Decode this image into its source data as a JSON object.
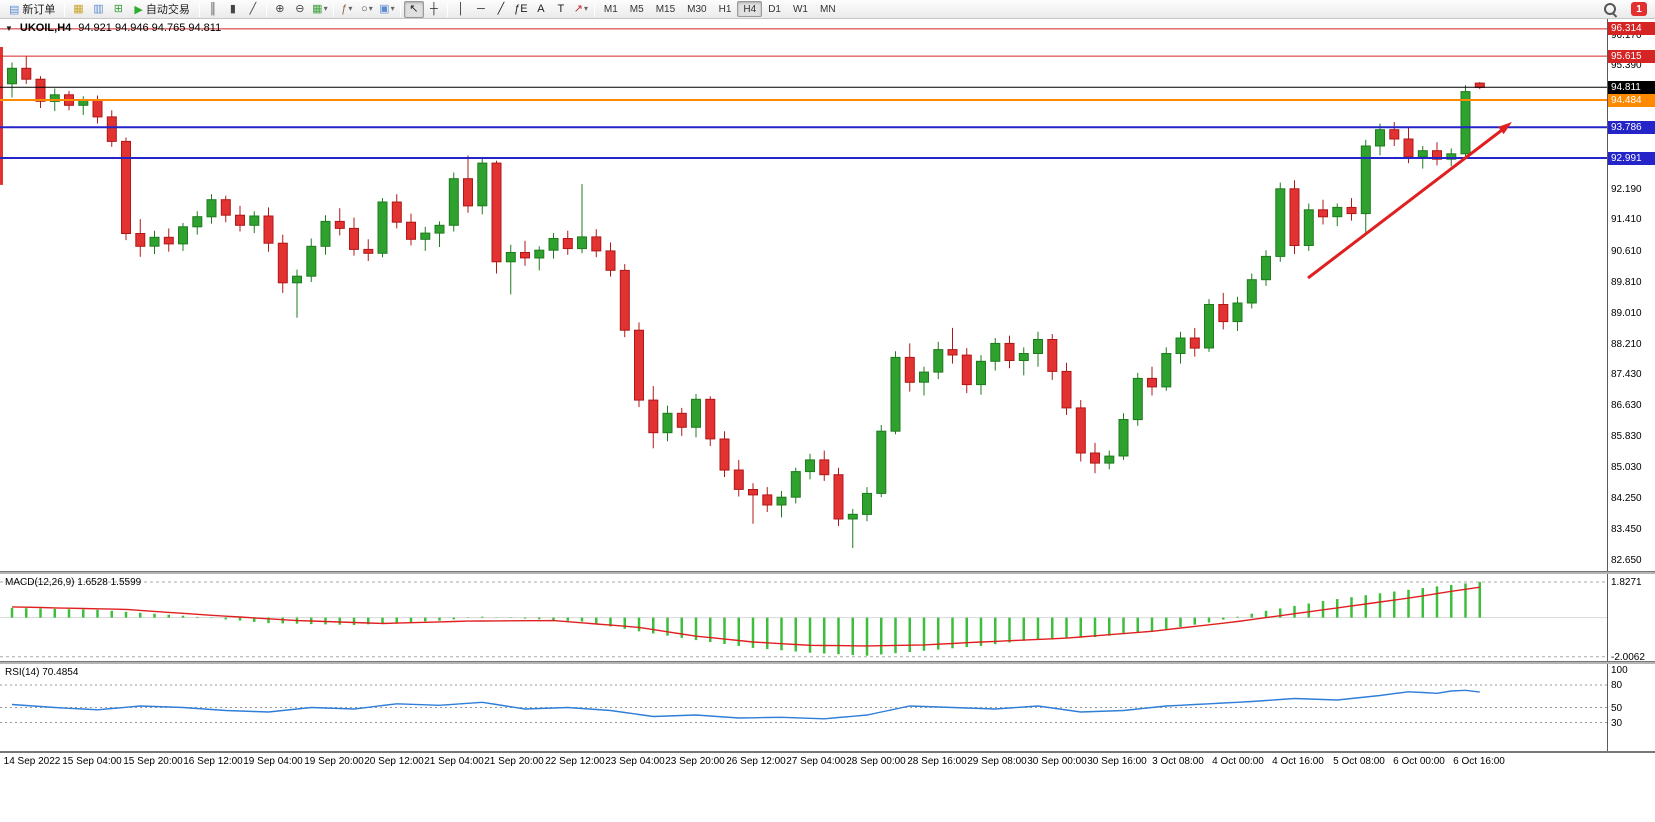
{
  "window": {
    "notification_count": "1"
  },
  "toolbar": {
    "new_order_label": "新订单",
    "auto_trading_label": "自动交易",
    "timeframes": [
      "M1",
      "M5",
      "M15",
      "M30",
      "H1",
      "H4",
      "D1",
      "W1",
      "MN"
    ],
    "active_timeframe": "H4",
    "icons": [
      {
        "t": "btn",
        "name": "new-order-button",
        "glyph": "▤",
        "gc": "#5b8bd0",
        "label_key": "new_order_label"
      },
      {
        "t": "sep"
      },
      {
        "t": "ico",
        "name": "market-watch-icon",
        "glyph": "▦",
        "gc": "#c9a227"
      },
      {
        "t": "ico",
        "name": "data-window-icon",
        "glyph": "▥",
        "gc": "#5b8bd0"
      },
      {
        "t": "ico",
        "name": "navigator-icon",
        "glyph": "⊞",
        "gc": "#3a9e3a"
      },
      {
        "t": "btn",
        "name": "auto-trading-button",
        "glyph": "▶",
        "gc": "#2eae2e",
        "label_key": "auto_trading_label"
      },
      {
        "t": "sep"
      },
      {
        "t": "ico",
        "name": "ohlc-bars-icon",
        "glyph": "║",
        "gc": "#444444"
      },
      {
        "t": "ico",
        "name": "candlestick-chart-icon",
        "glyph": "▮",
        "gc": "#444444"
      },
      {
        "t": "ico",
        "name": "line-chart-icon",
        "glyph": "╱",
        "gc": "#444444"
      },
      {
        "t": "sep"
      },
      {
        "t": "ico",
        "name": "zoom-in-icon",
        "glyph": "⊕",
        "gc": "#444444"
      },
      {
        "t": "ico",
        "name": "zoom-out-icon",
        "glyph": "⊖",
        "gc": "#444444"
      },
      {
        "t": "icodd",
        "name": "tile-windows-icon",
        "glyph": "▦",
        "gc": "#3a9e3a"
      },
      {
        "t": "sep"
      },
      {
        "t": "icodd",
        "name": "indicators-icon",
        "glyph": "ƒ",
        "gc": "#8a6d3b"
      },
      {
        "t": "icodd",
        "name": "periods-icon",
        "glyph": "○",
        "gc": "#444444"
      },
      {
        "t": "icodd",
        "name": "templates-icon",
        "glyph": "▣",
        "gc": "#5b8bd0"
      },
      {
        "t": "sep"
      },
      {
        "t": "ico",
        "name": "cursor-icon",
        "glyph": "↖",
        "gc": "#222222",
        "active": true
      },
      {
        "t": "ico",
        "name": "crosshair-icon",
        "glyph": "┼",
        "gc": "#222222"
      },
      {
        "t": "sep"
      },
      {
        "t": "ico",
        "name": "vertical-line-icon",
        "glyph": "│",
        "gc": "#222222"
      },
      {
        "t": "ico",
        "name": "horizontal-line-icon",
        "glyph": "─",
        "gc": "#222222"
      },
      {
        "t": "ico",
        "name": "trendline-icon",
        "glyph": "╱",
        "gc": "#222222"
      },
      {
        "t": "ico",
        "name": "fibonacci-icon",
        "glyph": "ƒE",
        "gc": "#222222"
      },
      {
        "t": "ico",
        "name": "text-icon",
        "glyph": "A",
        "gc": "#222222"
      },
      {
        "t": "ico",
        "name": "text-label-icon",
        "glyph": "T",
        "gc": "#222222"
      },
      {
        "t": "icodd",
        "name": "arrows-icon",
        "glyph": "↗",
        "gc": "#c03030"
      },
      {
        "t": "sep"
      },
      {
        "t": "tf"
      },
      {
        "t": "spacer"
      },
      {
        "t": "mag",
        "name": "search-icon"
      },
      {
        "t": "badge",
        "name": "notification-badge"
      }
    ]
  },
  "chart": {
    "title": "UKOIL,H4",
    "quote": "94.921 94.946 94.765 94.811",
    "y_ticks": [
      "96.170",
      "95.390",
      "94.590",
      "93.790",
      "92.990",
      "92.190",
      "91.410",
      "90.610",
      "89.810",
      "89.010",
      "88.210",
      "87.430",
      "86.630",
      "85.830",
      "85.030",
      "84.250",
      "83.450",
      "82.650"
    ],
    "hlines": [
      {
        "price": 96.314,
        "label": "96.314",
        "color": "#d42424",
        "width": 1
      },
      {
        "price": 95.615,
        "label": "95.615",
        "color": "#d42424",
        "width": 1
      },
      {
        "price": 94.811,
        "label": "94.811",
        "color": "#000000",
        "width": 1
      },
      {
        "price": 94.484,
        "label": "94.484",
        "color": "#ff8a00",
        "width": 2
      },
      {
        "price": 93.786,
        "label": "93.786",
        "color": "#2424c8",
        "width": 2
      },
      {
        "price": 92.991,
        "label": "92.991",
        "color": "#2424c8",
        "width": 2
      }
    ],
    "time_labels": [
      "14 Sep 2022",
      "15 Sep 04:00",
      "15 Sep 20:00",
      "16 Sep 12:00",
      "19 Sep 04:00",
      "19 Sep 20:00",
      "20 Sep 12:00",
      "21 Sep 04:00",
      "21 Sep 20:00",
      "22 Sep 12:00",
      "23 Sep 04:00",
      "23 Sep 20:00",
      "26 Sep 12:00",
      "27 Sep 04:00",
      "28 Sep 00:00",
      "28 Sep 16:00",
      "29 Sep 08:00",
      "30 Sep 00:00",
      "30 Sep 16:00",
      "3 Oct 08:00",
      "4 Oct 00:00",
      "4 Oct 16:00",
      "5 Oct 08:00",
      "6 Oct 00:00",
      "6 Oct 16:00"
    ],
    "candles": [
      [
        94.9,
        95.45,
        94.55,
        95.3
      ],
      [
        95.3,
        95.62,
        94.9,
        95.02
      ],
      [
        95.02,
        95.1,
        94.28,
        94.45
      ],
      [
        94.45,
        94.78,
        94.2,
        94.62
      ],
      [
        94.62,
        94.72,
        94.22,
        94.35
      ],
      [
        94.35,
        94.58,
        94.1,
        94.48
      ],
      [
        94.48,
        94.6,
        93.88,
        94.05
      ],
      [
        94.05,
        94.22,
        93.28,
        93.42
      ],
      [
        93.42,
        93.52,
        90.88,
        91.05
      ],
      [
        91.05,
        91.42,
        90.45,
        90.72
      ],
      [
        90.72,
        91.12,
        90.52,
        90.95
      ],
      [
        90.95,
        91.18,
        90.58,
        90.78
      ],
      [
        90.78,
        91.32,
        90.6,
        91.22
      ],
      [
        91.22,
        91.62,
        91.02,
        91.48
      ],
      [
        91.48,
        92.06,
        91.3,
        91.92
      ],
      [
        91.92,
        92.02,
        91.34,
        91.52
      ],
      [
        91.52,
        91.76,
        91.1,
        91.26
      ],
      [
        91.26,
        91.62,
        91.06,
        91.5
      ],
      [
        91.5,
        91.72,
        90.58,
        90.8
      ],
      [
        90.8,
        91.02,
        89.52,
        89.78
      ],
      [
        89.78,
        90.12,
        88.88,
        89.95
      ],
      [
        89.95,
        90.92,
        89.8,
        90.72
      ],
      [
        90.72,
        91.52,
        90.5,
        91.36
      ],
      [
        91.36,
        91.7,
        91.0,
        91.18
      ],
      [
        91.18,
        91.46,
        90.48,
        90.64
      ],
      [
        90.64,
        90.9,
        90.34,
        90.54
      ],
      [
        90.54,
        91.96,
        90.44,
        91.86
      ],
      [
        91.86,
        92.06,
        91.18,
        91.34
      ],
      [
        91.34,
        91.56,
        90.74,
        90.9
      ],
      [
        90.9,
        91.22,
        90.6,
        91.06
      ],
      [
        91.06,
        91.36,
        90.7,
        91.26
      ],
      [
        91.26,
        92.62,
        91.1,
        92.46
      ],
      [
        92.46,
        93.06,
        91.58,
        91.76
      ],
      [
        91.76,
        93.02,
        91.54,
        92.86
      ],
      [
        92.86,
        92.92,
        90.02,
        90.32
      ],
      [
        90.32,
        90.76,
        89.48,
        90.56
      ],
      [
        90.56,
        90.86,
        90.22,
        90.42
      ],
      [
        90.42,
        90.72,
        90.1,
        90.62
      ],
      [
        90.62,
        91.06,
        90.4,
        90.92
      ],
      [
        90.92,
        91.12,
        90.5,
        90.66
      ],
      [
        90.66,
        92.32,
        90.54,
        90.96
      ],
      [
        90.96,
        91.16,
        90.44,
        90.6
      ],
      [
        90.6,
        90.82,
        89.94,
        90.1
      ],
      [
        90.1,
        90.26,
        88.38,
        88.56
      ],
      [
        88.56,
        88.76,
        86.58,
        86.76
      ],
      [
        86.76,
        87.12,
        85.52,
        85.92
      ],
      [
        85.92,
        86.62,
        85.7,
        86.42
      ],
      [
        86.42,
        86.56,
        85.84,
        86.06
      ],
      [
        86.06,
        86.92,
        85.8,
        86.78
      ],
      [
        86.78,
        86.86,
        85.58,
        85.76
      ],
      [
        85.76,
        85.96,
        84.78,
        84.96
      ],
      [
        84.96,
        85.22,
        84.28,
        84.46
      ],
      [
        84.46,
        84.62,
        83.58,
        84.32
      ],
      [
        84.32,
        84.52,
        83.88,
        84.06
      ],
      [
        84.06,
        84.42,
        83.74,
        84.26
      ],
      [
        84.26,
        85.02,
        84.1,
        84.92
      ],
      [
        84.92,
        85.38,
        84.72,
        85.22
      ],
      [
        85.22,
        85.46,
        84.68,
        84.84
      ],
      [
        84.84,
        85.02,
        83.52,
        83.7
      ],
      [
        83.7,
        83.96,
        82.95,
        83.82
      ],
      [
        83.82,
        84.52,
        83.64,
        84.36
      ],
      [
        84.36,
        86.12,
        84.26,
        85.96
      ],
      [
        85.96,
        88.02,
        85.88,
        87.86
      ],
      [
        87.86,
        88.22,
        86.98,
        87.22
      ],
      [
        87.22,
        87.62,
        86.88,
        87.48
      ],
      [
        87.48,
        88.26,
        87.3,
        88.06
      ],
      [
        88.06,
        88.62,
        87.7,
        87.92
      ],
      [
        87.92,
        88.1,
        86.94,
        87.16
      ],
      [
        87.16,
        87.92,
        86.9,
        87.76
      ],
      [
        87.76,
        88.36,
        87.52,
        88.22
      ],
      [
        88.22,
        88.42,
        87.58,
        87.78
      ],
      [
        87.78,
        88.12,
        87.4,
        87.96
      ],
      [
        87.96,
        88.52,
        87.62,
        88.32
      ],
      [
        88.32,
        88.46,
        87.28,
        87.5
      ],
      [
        87.5,
        87.72,
        86.38,
        86.56
      ],
      [
        86.56,
        86.76,
        85.18,
        85.4
      ],
      [
        85.4,
        85.66,
        84.88,
        85.14
      ],
      [
        85.14,
        85.46,
        84.98,
        85.32
      ],
      [
        85.32,
        86.42,
        85.22,
        86.26
      ],
      [
        86.26,
        87.46,
        86.1,
        87.32
      ],
      [
        87.32,
        87.62,
        86.88,
        87.1
      ],
      [
        87.1,
        88.12,
        87.0,
        87.96
      ],
      [
        87.96,
        88.52,
        87.7,
        88.36
      ],
      [
        88.36,
        88.62,
        87.88,
        88.1
      ],
      [
        88.1,
        89.36,
        88.0,
        89.22
      ],
      [
        89.22,
        89.52,
        88.58,
        88.78
      ],
      [
        88.78,
        89.42,
        88.54,
        89.26
      ],
      [
        89.26,
        90.02,
        89.12,
        89.86
      ],
      [
        89.86,
        90.62,
        89.7,
        90.46
      ],
      [
        90.46,
        92.36,
        90.32,
        92.2
      ],
      [
        92.2,
        92.42,
        90.52,
        90.74
      ],
      [
        90.74,
        91.82,
        90.6,
        91.66
      ],
      [
        91.66,
        91.92,
        91.28,
        91.48
      ],
      [
        91.48,
        91.82,
        91.24,
        91.72
      ],
      [
        91.72,
        91.96,
        91.38,
        91.56
      ],
      [
        91.56,
        93.46,
        91.02,
        93.3
      ],
      [
        93.3,
        93.88,
        93.06,
        93.72
      ],
      [
        93.72,
        93.92,
        93.3,
        93.48
      ],
      [
        93.48,
        93.8,
        92.86,
        93.02
      ],
      [
        93.02,
        93.3,
        92.72,
        93.18
      ],
      [
        93.18,
        93.4,
        92.8,
        92.96
      ],
      [
        92.96,
        93.24,
        92.78,
        93.1
      ],
      [
        93.1,
        94.86,
        93.0,
        94.7
      ],
      [
        94.921,
        94.946,
        94.765,
        94.811
      ]
    ]
  },
  "macd": {
    "label": "MACD(12,26,9) 1.6528 1.5599",
    "axis_labels": [
      "1.8271",
      "-2.0062"
    ],
    "max": 1.8271,
    "min": -2.0062,
    "hist_anchors": [
      [
        0,
        0.5
      ],
      [
        6,
        0.4
      ],
      [
        12,
        0.1
      ],
      [
        18,
        -0.28
      ],
      [
        24,
        -0.38
      ],
      [
        30,
        -0.15
      ],
      [
        33,
        0.05
      ],
      [
        36,
        -0.05
      ],
      [
        40,
        -0.2
      ],
      [
        44,
        -0.7
      ],
      [
        48,
        -1.15
      ],
      [
        52,
        -1.55
      ],
      [
        56,
        -1.8
      ],
      [
        60,
        -1.95
      ],
      [
        64,
        -1.7
      ],
      [
        68,
        -1.45
      ],
      [
        72,
        -1.1
      ],
      [
        76,
        -1.0
      ],
      [
        80,
        -0.7
      ],
      [
        84,
        -0.25
      ],
      [
        88,
        0.35
      ],
      [
        92,
        0.85
      ],
      [
        96,
        1.25
      ],
      [
        100,
        1.6
      ],
      [
        103,
        1.83
      ]
    ],
    "signal_anchors": [
      [
        0,
        0.55
      ],
      [
        8,
        0.42
      ],
      [
        14,
        0.12
      ],
      [
        20,
        -0.15
      ],
      [
        26,
        -0.3
      ],
      [
        32,
        -0.18
      ],
      [
        38,
        -0.15
      ],
      [
        44,
        -0.5
      ],
      [
        48,
        -0.95
      ],
      [
        52,
        -1.25
      ],
      [
        56,
        -1.42
      ],
      [
        60,
        -1.45
      ],
      [
        64,
        -1.4
      ],
      [
        68,
        -1.25
      ],
      [
        74,
        -1.05
      ],
      [
        80,
        -0.7
      ],
      [
        86,
        -0.2
      ],
      [
        90,
        0.2
      ],
      [
        94,
        0.6
      ],
      [
        98,
        1.0
      ],
      [
        101,
        1.35
      ],
      [
        103,
        1.56
      ]
    ]
  },
  "rsi": {
    "label": "RSI(14) 70.4854",
    "axis_labels": [
      "100",
      "80",
      "50",
      "30"
    ],
    "axis_values": [
      100,
      80,
      50,
      30
    ],
    "levels": [
      80,
      50,
      30
    ],
    "anchors": [
      [
        0,
        54
      ],
      [
        3,
        50
      ],
      [
        6,
        47
      ],
      [
        9,
        52
      ],
      [
        12,
        50
      ],
      [
        15,
        46
      ],
      [
        18,
        44
      ],
      [
        21,
        50
      ],
      [
        24,
        48
      ],
      [
        27,
        55
      ],
      [
        30,
        53
      ],
      [
        33,
        57
      ],
      [
        36,
        48
      ],
      [
        39,
        50
      ],
      [
        42,
        46
      ],
      [
        45,
        38
      ],
      [
        48,
        40
      ],
      [
        51,
        36
      ],
      [
        54,
        37
      ],
      [
        57,
        35
      ],
      [
        60,
        40
      ],
      [
        63,
        52
      ],
      [
        66,
        50
      ],
      [
        69,
        48
      ],
      [
        72,
        52
      ],
      [
        75,
        44
      ],
      [
        78,
        46
      ],
      [
        81,
        52
      ],
      [
        84,
        55
      ],
      [
        87,
        58
      ],
      [
        90,
        62
      ],
      [
        93,
        60
      ],
      [
        96,
        66
      ],
      [
        98,
        71
      ],
      [
        100,
        69
      ],
      [
        101,
        72
      ],
      [
        102,
        73
      ],
      [
        103,
        70.5
      ]
    ]
  },
  "colors": {
    "bull": "#2fa12f",
    "bull_stroke": "#1e7b1e",
    "bear": "#e23232",
    "bear_stroke": "#b01818",
    "macd_hist": "#3dbe3d",
    "macd_signal": "#e02020",
    "rsi_line": "#2f7ed8",
    "arrow": "#e02020"
  }
}
